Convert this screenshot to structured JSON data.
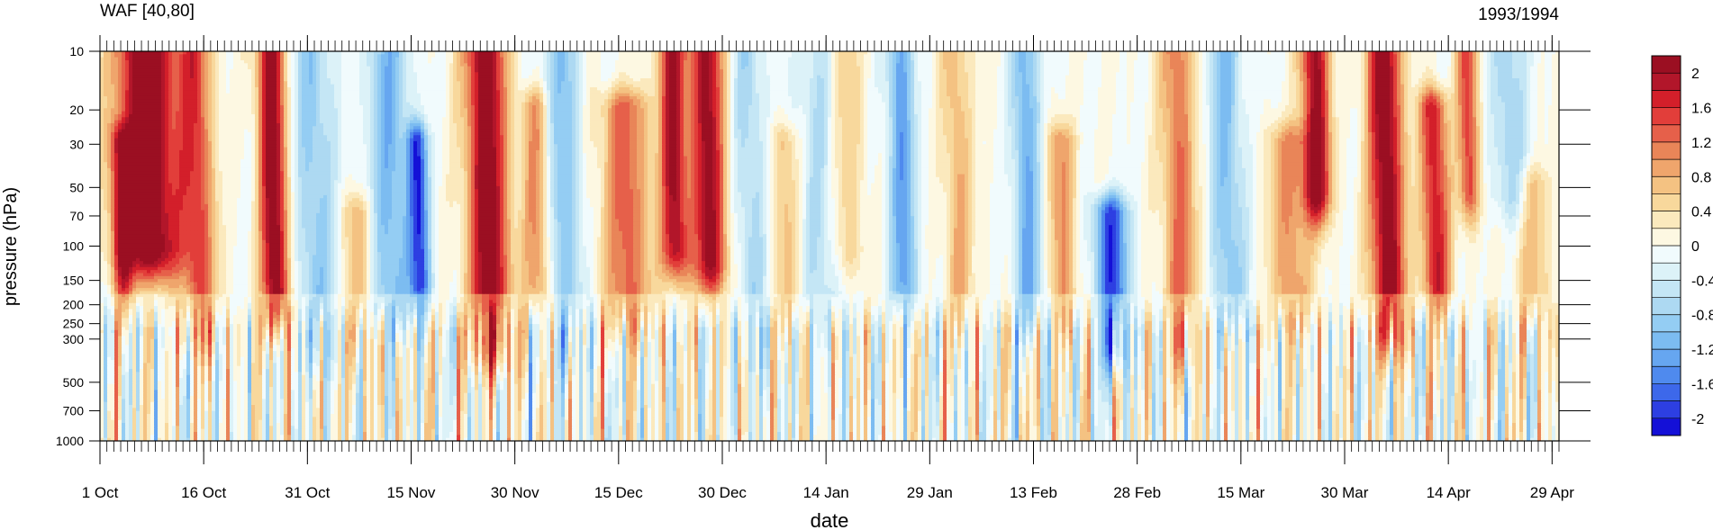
{
  "chart_data": {
    "type": "heatmap",
    "title_left": "WAF [40,80]",
    "title_right": "1993/1994",
    "xlabel": "date",
    "ylabel": "pressure (hPa)",
    "x_ticks": [
      "1 Oct",
      "16 Oct",
      "31 Oct",
      "15 Nov",
      "30 Nov",
      "15 Dec",
      "30 Dec",
      "14 Jan",
      "29 Jan",
      "13 Feb",
      "28 Feb",
      "15 Mar",
      "30 Mar",
      "14 Apr",
      "29 Apr"
    ],
    "x_tick_days": [
      0,
      15,
      30,
      45,
      60,
      75,
      90,
      105,
      120,
      135,
      150,
      165,
      180,
      195,
      210
    ],
    "x_range_days": [
      0,
      211
    ],
    "y_ticks": [
      10,
      20,
      30,
      50,
      70,
      100,
      150,
      200,
      250,
      300,
      500,
      700,
      1000
    ],
    "y_scale": "log",
    "y_range": [
      10,
      1000
    ],
    "y_direction": "decreasing-upward",
    "colorbar": {
      "labels": [
        "2",
        "1.6",
        "1.2",
        "0.8",
        "0.4",
        "0",
        "-0.4",
        "-0.8",
        "-1.2",
        "-1.6",
        "-2"
      ],
      "min": -2.2,
      "max": 2.2,
      "step": 0.2,
      "colors": [
        "#1410d7",
        "#2d3fe2",
        "#3d68ea",
        "#4f8aee",
        "#66a6f0",
        "#7cbcf1",
        "#94cdf3",
        "#add9f2",
        "#c4e6f5",
        "#dcf2f8",
        "#f1fbfd",
        "#fdf8e2",
        "#fbe9bd",
        "#f8d89c",
        "#f4c282",
        "#efa56c",
        "#e98558",
        "#e6604a",
        "#e23e3a",
        "#d31f2a",
        "#b2162a",
        "#9b0f22"
      ]
    },
    "time_features": [
      {
        "day": 3,
        "amp": 1.3,
        "width": 1.5,
        "p_top": 30,
        "p_bottom": 150
      },
      {
        "day": 7,
        "amp": 2.5,
        "width": 4.5,
        "p_top": 10,
        "p_bottom": 100
      },
      {
        "day": 14,
        "amp": 1.4,
        "width": 2.5,
        "p_top": 10,
        "p_bottom": 250
      },
      {
        "day": 25,
        "amp": 2.3,
        "width": 2.0,
        "p_top": 10,
        "p_bottom": 200
      },
      {
        "day": 31,
        "amp": -0.9,
        "width": 3.0,
        "p_top": 10,
        "p_bottom": 300
      },
      {
        "day": 37,
        "amp": 0.8,
        "width": 2.0,
        "p_top": 70,
        "p_bottom": 300
      },
      {
        "day": 42,
        "amp": -1.1,
        "width": 3.0,
        "p_top": 10,
        "p_bottom": 200
      },
      {
        "day": 46,
        "amp": -1.8,
        "width": 1.5,
        "p_top": 30,
        "p_bottom": 150
      },
      {
        "day": 56,
        "amp": 2.3,
        "width": 3.0,
        "p_top": 10,
        "p_bottom": 300
      },
      {
        "day": 63,
        "amp": 1.0,
        "width": 2.0,
        "p_top": 20,
        "p_bottom": 150
      },
      {
        "day": 67,
        "amp": -1.0,
        "width": 2.5,
        "p_top": 10,
        "p_bottom": 300
      },
      {
        "day": 76,
        "amp": 1.3,
        "width": 3.5,
        "p_top": 20,
        "p_bottom": 200
      },
      {
        "day": 83,
        "amp": 2.0,
        "width": 2.0,
        "p_top": 10,
        "p_bottom": 100
      },
      {
        "day": 88,
        "amp": 2.1,
        "width": 2.5,
        "p_top": 10,
        "p_bottom": 120
      },
      {
        "day": 94,
        "amp": -0.7,
        "width": 2.5,
        "p_top": 10,
        "p_bottom": 300
      },
      {
        "day": 99,
        "amp": 0.7,
        "width": 2.0,
        "p_top": 30,
        "p_bottom": 200
      },
      {
        "day": 104,
        "amp": -0.6,
        "width": 3.0,
        "p_top": 10,
        "p_bottom": 200
      },
      {
        "day": 108,
        "amp": 0.6,
        "width": 2.5,
        "p_top": 10,
        "p_bottom": 100
      },
      {
        "day": 116,
        "amp": -1.3,
        "width": 2.0,
        "p_top": 10,
        "p_bottom": 150
      },
      {
        "day": 124,
        "amp": 0.8,
        "width": 2.0,
        "p_top": 10,
        "p_bottom": 200
      },
      {
        "day": 134,
        "amp": -1.2,
        "width": 2.0,
        "p_top": 10,
        "p_bottom": 200
      },
      {
        "day": 139,
        "amp": 1.0,
        "width": 2.0,
        "p_top": 30,
        "p_bottom": 200
      },
      {
        "day": 146,
        "amp": -1.9,
        "width": 2.5,
        "p_top": 70,
        "p_bottom": 300
      },
      {
        "day": 156,
        "amp": 1.2,
        "width": 2.5,
        "p_top": 10,
        "p_bottom": 300
      },
      {
        "day": 163,
        "amp": -1.0,
        "width": 2.5,
        "p_top": 10,
        "p_bottom": 200
      },
      {
        "day": 172,
        "amp": 1.0,
        "width": 3.0,
        "p_top": 30,
        "p_bottom": 200
      },
      {
        "day": 176,
        "amp": 2.2,
        "width": 2.0,
        "p_top": 10,
        "p_bottom": 50
      },
      {
        "day": 186,
        "amp": 2.3,
        "width": 2.5,
        "p_top": 10,
        "p_bottom": 250
      },
      {
        "day": 193,
        "amp": 1.8,
        "width": 2.0,
        "p_top": 20,
        "p_bottom": 150
      },
      {
        "day": 198,
        "amp": 1.5,
        "width": 1.5,
        "p_top": 10,
        "p_bottom": 50
      },
      {
        "day": 204,
        "amp": -0.8,
        "width": 2.5,
        "p_top": 10,
        "p_bottom": 50
      },
      {
        "day": 207,
        "amp": 0.7,
        "width": 2.5,
        "p_top": 50,
        "p_bottom": 200
      }
    ]
  }
}
